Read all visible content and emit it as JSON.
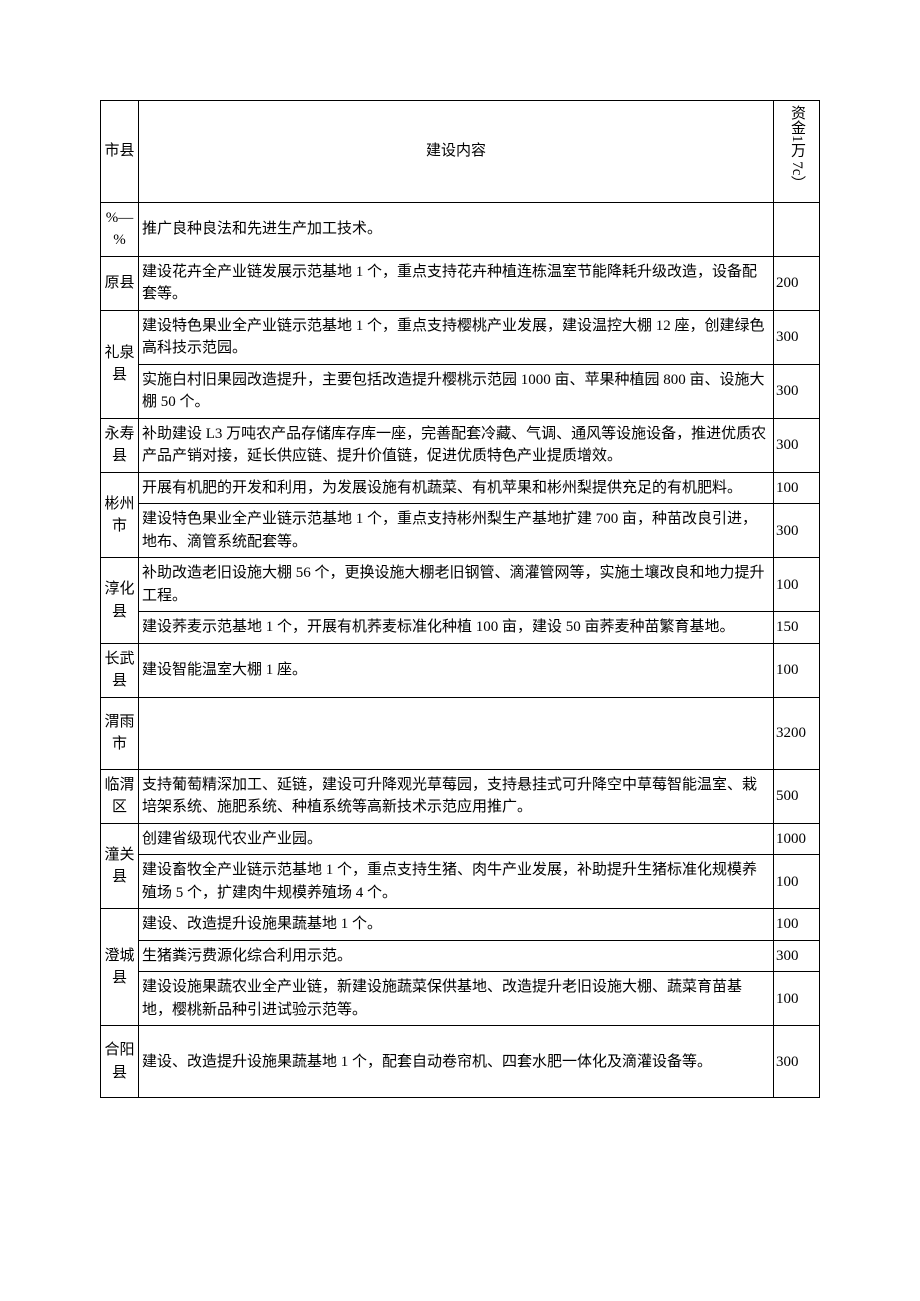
{
  "header": {
    "region": "市县",
    "content": "建设内容",
    "fund": "资金1万 7c）"
  },
  "rows": [
    {
      "region": "%—%",
      "content": "推广良种良法和先进生产加工技术。",
      "fund": ""
    },
    {
      "region": "原县",
      "content": "建设花卉全产业链发展示范基地 1 个，重点支持花卉种植连栋温室节能降耗升级改造，设备配套等。",
      "fund": "200"
    },
    {
      "region": "礼泉县",
      "rowspan": 2,
      "content": "建设特色果业全产业链示范基地 1 个，重点支持樱桃产业发展，建设温控大棚 12 座，创建绿色高科技示范园。",
      "fund": "300"
    },
    {
      "content": "实施白村旧果园改造提升，主要包括改造提升樱桃示范园 1000 亩、苹果种植园 800 亩、设施大棚 50 个。",
      "fund": "300"
    },
    {
      "region": "永寿县",
      "content": "补助建设 L3 万吨农产品存储库存库一座，完善配套冷藏、气调、通风等设施设备，推进优质农产品产销对接，延长供应链、提升价值链，促进优质特色产业提质增效。",
      "fund": "300"
    },
    {
      "region": "彬州市",
      "rowspan": 2,
      "content": "开展有机肥的开发和利用，为发展设施有机蔬菜、有机苹果和彬州梨提供充足的有机肥料。",
      "fund": "100"
    },
    {
      "content": "建设特色果业全产业链示范基地 1 个，重点支持彬州梨生产基地扩建 700 亩，种苗改良引进，地布、滴管系统配套等。",
      "fund": "300"
    },
    {
      "region": "淳化县",
      "rowspan": 2,
      "content": "补助改造老旧设施大棚 56 个，更换设施大棚老旧钢管、滴灌管网等，实施土壤改良和地力提升工程。",
      "fund": "100"
    },
    {
      "content": "建设荞麦示范基地 1 个，开展有机荞麦标准化种植 100 亩，建设 50 亩荞麦种苗繁育基地。",
      "fund": "150"
    },
    {
      "region": "长武县",
      "content": "建设智能温室大棚 1 座。",
      "fund": "100"
    },
    {
      "region": "渭雨市",
      "content": "",
      "fund": "3200",
      "tall": true
    },
    {
      "region": "临渭区",
      "content": "支持葡萄精深加工、延链，建设可升降观光草莓园，支持悬挂式可升降空中草莓智能温室、栽培架系统、施肥系统、种植系统等高新技术示范应用推广。",
      "fund": "500"
    },
    {
      "region": "潼关县",
      "rowspan": 2,
      "content": "创建省级现代农业产业园。",
      "fund": "1000"
    },
    {
      "content": "建设畜牧全产业链示范基地 1 个，重点支持生猪、肉牛产业发展，补助提升生猪标准化规模养殖场 5 个，扩建肉牛规模养殖场 4 个。",
      "fund": "100"
    },
    {
      "region": "澄城县",
      "rowspan": 3,
      "content": "建设、改造提升设施果蔬基地 1 个。",
      "fund": "100"
    },
    {
      "content": "生猪粪污费源化综合利用示范。",
      "fund": "300"
    },
    {
      "content": "建设设施果蔬农业全产业链，新建设施蔬菜保供基地、改造提升老旧设施大棚、蔬菜育苗基地，樱桃新品种引进试验示范等。",
      "fund": "100"
    },
    {
      "region": "合阳县",
      "content": "建设、改造提升设施果蔬基地 1 个，配套自动卷帘机、四套水肥一体化及滴灌设备等。",
      "fund": "300",
      "tall": true
    }
  ]
}
